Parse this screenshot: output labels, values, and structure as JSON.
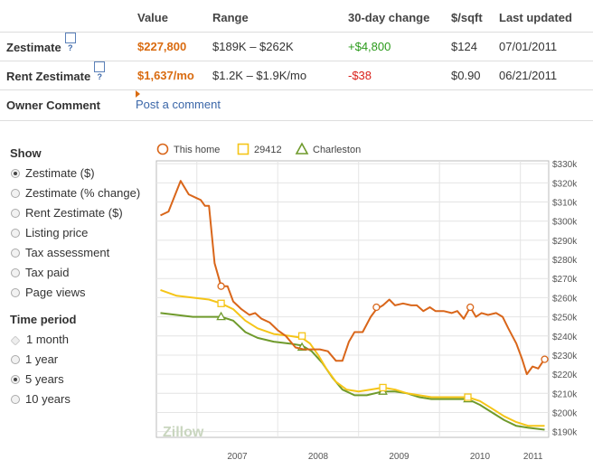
{
  "table": {
    "headers": [
      "Value",
      "Range",
      "30-day change",
      "$/sqft",
      "Last updated"
    ],
    "help_glyph": "?",
    "zestimate": {
      "label": "Zestimate",
      "value": "$227,800",
      "range": "$189K – $262K",
      "change": "+$4,800",
      "per_sqft": "$124",
      "updated": "07/01/2011"
    },
    "rent": {
      "label": "Rent Zestimate",
      "value": "$1,637/mo",
      "range": "$1.2K – $1.9K/mo",
      "change": "-$38",
      "per_sqft": "$0.90",
      "updated": "06/21/2011"
    },
    "owner": {
      "label": "Owner Comment",
      "link": "Post a comment"
    }
  },
  "show": {
    "title": "Show",
    "options": [
      {
        "label": "Zestimate ($)",
        "selected": true
      },
      {
        "label": "Zestimate (% change)",
        "selected": false
      },
      {
        "label": "Rent Zestimate ($)",
        "selected": false
      },
      {
        "label": "Listing price",
        "selected": false
      },
      {
        "label": "Tax assessment",
        "selected": false
      },
      {
        "label": "Tax paid",
        "selected": false
      },
      {
        "label": "Page views",
        "selected": false
      }
    ]
  },
  "time_period": {
    "title": "Time period",
    "options": [
      {
        "label": "1 month",
        "selected": false,
        "disabled": true
      },
      {
        "label": "1 year",
        "selected": false
      },
      {
        "label": "5 years",
        "selected": true
      },
      {
        "label": "10 years",
        "selected": false
      }
    ]
  },
  "colors": {
    "this_home": "#d9661a",
    "zip": "#f5c518",
    "city": "#6f9a2c",
    "grid": "#e4e4e4"
  },
  "watermark": "Zillow",
  "chart_data": {
    "type": "line",
    "legend": [
      "This home",
      "29412",
      "Charleston"
    ],
    "legend_placement": "top-left",
    "x_ticks": [
      "2007",
      "2008",
      "2009",
      "2010",
      "2011"
    ],
    "y_ticks": [
      "$190k",
      "$200k",
      "$210k",
      "$220k",
      "$230k",
      "$240k",
      "$250k",
      "$260k",
      "$270k",
      "$280k",
      "$290k",
      "$300k",
      "$310k",
      "$320k",
      "$330k"
    ],
    "ylim": [
      190,
      330
    ],
    "y_unit": "$k",
    "grid": true,
    "series": [
      {
        "name": "This home",
        "marker": "circle",
        "points": [
          [
            2006.55,
            303
          ],
          [
            2006.65,
            305
          ],
          [
            2006.8,
            321
          ],
          [
            2006.9,
            314
          ],
          [
            2007.0,
            312
          ],
          [
            2007.05,
            311
          ],
          [
            2007.1,
            308
          ],
          [
            2007.15,
            308
          ],
          [
            2007.22,
            278
          ],
          [
            2007.3,
            266
          ],
          [
            2007.38,
            266
          ],
          [
            2007.45,
            258
          ],
          [
            2007.55,
            254
          ],
          [
            2007.65,
            251
          ],
          [
            2007.72,
            252
          ],
          [
            2007.8,
            249
          ],
          [
            2007.9,
            247
          ],
          [
            2008.0,
            243
          ],
          [
            2008.1,
            240
          ],
          [
            2008.22,
            234
          ],
          [
            2008.32,
            233
          ],
          [
            2008.42,
            233
          ],
          [
            2008.52,
            233
          ],
          [
            2008.62,
            232
          ],
          [
            2008.72,
            227
          ],
          [
            2008.8,
            227
          ],
          [
            2008.88,
            237
          ],
          [
            2008.95,
            242
          ],
          [
            2009.05,
            242
          ],
          [
            2009.15,
            250
          ],
          [
            2009.22,
            254
          ],
          [
            2009.3,
            256
          ],
          [
            2009.38,
            259
          ],
          [
            2009.45,
            256
          ],
          [
            2009.55,
            257
          ],
          [
            2009.65,
            256
          ],
          [
            2009.72,
            256
          ],
          [
            2009.8,
            253
          ],
          [
            2009.88,
            255
          ],
          [
            2009.95,
            253
          ],
          [
            2010.05,
            253
          ],
          [
            2010.15,
            252
          ],
          [
            2010.22,
            253
          ],
          [
            2010.3,
            249
          ],
          [
            2010.38,
            255
          ],
          [
            2010.45,
            250
          ],
          [
            2010.52,
            252
          ],
          [
            2010.6,
            251
          ],
          [
            2010.7,
            252
          ],
          [
            2010.78,
            250
          ],
          [
            2010.85,
            244
          ],
          [
            2010.95,
            236
          ],
          [
            2011.02,
            228
          ],
          [
            2011.08,
            220
          ],
          [
            2011.15,
            224
          ],
          [
            2011.22,
            223
          ],
          [
            2011.3,
            228
          ]
        ],
        "marker_points": [
          [
            2007.3,
            266
          ],
          [
            2009.22,
            255
          ],
          [
            2010.38,
            255
          ],
          [
            2011.3,
            227.8
          ]
        ]
      },
      {
        "name": "29412",
        "marker": "square",
        "points": [
          [
            2006.55,
            264
          ],
          [
            2006.75,
            261
          ],
          [
            2006.95,
            260
          ],
          [
            2007.15,
            259
          ],
          [
            2007.3,
            257
          ],
          [
            2007.45,
            254
          ],
          [
            2007.6,
            248
          ],
          [
            2007.75,
            244
          ],
          [
            2007.95,
            241
          ],
          [
            2008.15,
            240
          ],
          [
            2008.3,
            239
          ],
          [
            2008.4,
            236
          ],
          [
            2008.5,
            230
          ],
          [
            2008.6,
            223
          ],
          [
            2008.72,
            216
          ],
          [
            2008.85,
            212
          ],
          [
            2009.0,
            211
          ],
          [
            2009.15,
            212
          ],
          [
            2009.3,
            213
          ],
          [
            2009.45,
            212
          ],
          [
            2009.6,
            210
          ],
          [
            2009.75,
            209
          ],
          [
            2009.9,
            208
          ],
          [
            2010.05,
            208
          ],
          [
            2010.2,
            208
          ],
          [
            2010.35,
            208
          ],
          [
            2010.5,
            206
          ],
          [
            2010.65,
            202
          ],
          [
            2010.8,
            198
          ],
          [
            2010.95,
            195
          ],
          [
            2011.1,
            193
          ],
          [
            2011.3,
            193
          ]
        ],
        "marker_points": [
          [
            2007.3,
            257
          ],
          [
            2008.3,
            240
          ],
          [
            2009.3,
            213
          ],
          [
            2010.35,
            208
          ]
        ]
      },
      {
        "name": "Charleston",
        "marker": "triangle",
        "points": [
          [
            2006.55,
            252
          ],
          [
            2006.75,
            251
          ],
          [
            2006.95,
            250
          ],
          [
            2007.15,
            250
          ],
          [
            2007.3,
            250
          ],
          [
            2007.45,
            248
          ],
          [
            2007.6,
            242
          ],
          [
            2007.75,
            239
          ],
          [
            2007.95,
            237
          ],
          [
            2008.15,
            236
          ],
          [
            2008.3,
            235
          ],
          [
            2008.42,
            232
          ],
          [
            2008.55,
            226
          ],
          [
            2008.68,
            218
          ],
          [
            2008.8,
            212
          ],
          [
            2008.95,
            209
          ],
          [
            2009.1,
            209
          ],
          [
            2009.3,
            211
          ],
          [
            2009.45,
            211
          ],
          [
            2009.6,
            210
          ],
          [
            2009.75,
            208
          ],
          [
            2009.9,
            207
          ],
          [
            2010.05,
            207
          ],
          [
            2010.2,
            207
          ],
          [
            2010.35,
            207
          ],
          [
            2010.5,
            204
          ],
          [
            2010.65,
            200
          ],
          [
            2010.8,
            196
          ],
          [
            2010.95,
            193
          ],
          [
            2011.1,
            192
          ],
          [
            2011.3,
            191
          ]
        ],
        "marker_points": [
          [
            2007.3,
            250
          ],
          [
            2008.3,
            234
          ],
          [
            2009.3,
            211
          ],
          [
            2010.35,
            207
          ]
        ]
      }
    ]
  }
}
